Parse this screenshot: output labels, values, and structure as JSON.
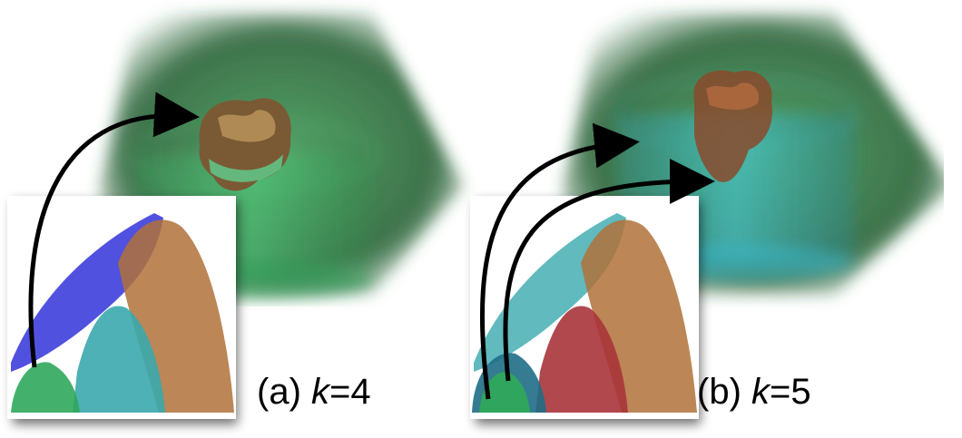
{
  "panels": [
    {
      "label_prefix": "(a) ",
      "var": "k",
      "label_suffix": "=4",
      "k": 4,
      "volume_color": "#2f8a45",
      "inner_color": "#48c66a"
    },
    {
      "label_prefix": "(b) ",
      "var": "k",
      "label_suffix": "=5",
      "k": 5,
      "volume_color": "#2f8a45",
      "inner_color": "#37b6c2"
    }
  ],
  "cluster_colors": {
    "blue": "#2525d8",
    "cyan": "#3aa9ad",
    "brown": "#b0713a",
    "green": "#2fa85c",
    "red": "#a8343a",
    "dark_teal": "#1f6e86"
  }
}
